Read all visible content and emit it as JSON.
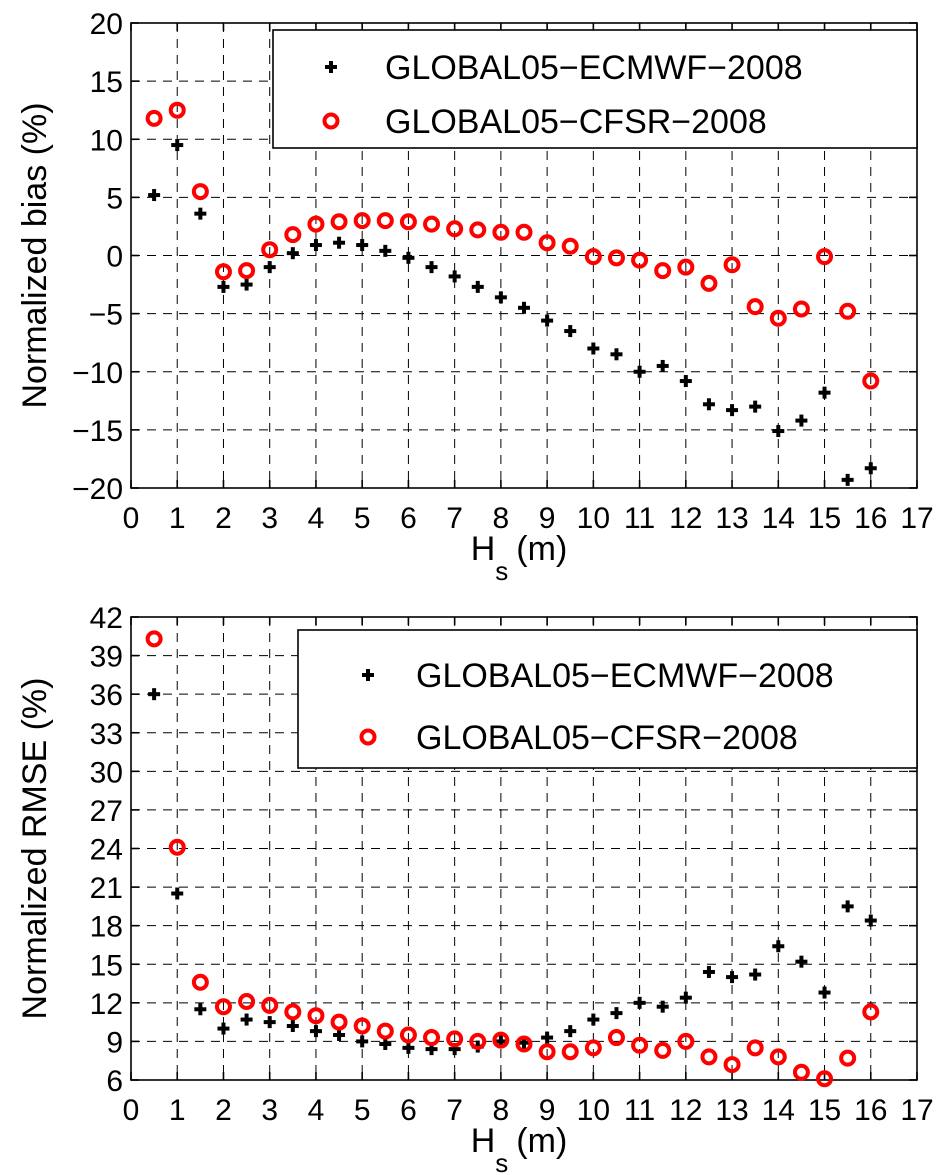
{
  "colors": {
    "ecmwf": "#000000",
    "cfsr": "#ff0000"
  },
  "chart_data": [
    {
      "type": "scatter",
      "ylabel": "Normalized bias (%)",
      "xlabel_main": "H",
      "xlabel_sub": "s",
      "xlabel_unit": "(m)",
      "xlim": [
        0,
        17
      ],
      "ylim": [
        -20,
        20
      ],
      "xticks": [
        0,
        1,
        2,
        3,
        4,
        5,
        6,
        7,
        8,
        9,
        10,
        11,
        12,
        13,
        14,
        15,
        16,
        17
      ],
      "yticks": [
        -20,
        -15,
        -10,
        -5,
        0,
        5,
        10,
        15,
        20
      ],
      "grid": true,
      "legend_position": "top-right",
      "series": [
        {
          "name": "GLOBAL05−ECMWF−2008",
          "marker": "plus",
          "x": [
            0.5,
            1,
            1.5,
            2,
            2.5,
            3,
            3.5,
            4,
            4.5,
            5,
            5.5,
            6,
            6.5,
            7,
            7.5,
            8,
            8.5,
            9,
            9.5,
            10,
            10.5,
            11,
            11.5,
            12,
            12.5,
            13,
            13.5,
            14,
            14.5,
            15,
            15.5,
            16
          ],
          "y": [
            5.2,
            9.5,
            3.6,
            -2.7,
            -2.5,
            -1.0,
            0.2,
            0.9,
            1.1,
            0.9,
            0.4,
            -0.2,
            -1.0,
            -1.8,
            -2.7,
            -3.6,
            -4.5,
            -5.6,
            -6.5,
            -8.0,
            -8.5,
            -10.0,
            -9.5,
            -10.8,
            -12.8,
            -13.3,
            -13.0,
            -15.1,
            -14.2,
            -11.8,
            -19.3,
            -18.3
          ]
        },
        {
          "name": "GLOBAL05−CFSR−2008",
          "marker": "circle",
          "x": [
            0.5,
            1,
            1.5,
            2,
            2.5,
            3,
            3.5,
            4,
            4.5,
            5,
            5.5,
            6,
            6.5,
            7,
            7.5,
            8,
            8.5,
            9,
            9.5,
            10,
            10.5,
            11,
            11.5,
            12,
            12.5,
            13,
            13.5,
            14,
            14.5,
            15,
            15.5,
            16
          ],
          "y": [
            11.8,
            12.5,
            5.5,
            -1.4,
            -1.3,
            0.5,
            1.8,
            2.7,
            2.9,
            3.0,
            3.0,
            2.9,
            2.7,
            2.3,
            2.2,
            2.0,
            2.0,
            1.1,
            0.8,
            -0.1,
            -0.2,
            -0.4,
            -1.3,
            -1.0,
            -2.4,
            -0.8,
            -4.4,
            -5.4,
            -4.6,
            -0.1,
            -4.8,
            -10.8
          ]
        }
      ]
    },
    {
      "type": "scatter",
      "ylabel": "Normalized RMSE (%)",
      "xlabel_main": "H",
      "xlabel_sub": "s",
      "xlabel_unit": "(m)",
      "xlim": [
        0,
        17
      ],
      "ylim": [
        6,
        42
      ],
      "xticks": [
        0,
        1,
        2,
        3,
        4,
        5,
        6,
        7,
        8,
        9,
        10,
        11,
        12,
        13,
        14,
        15,
        16,
        17
      ],
      "yticks": [
        6,
        9,
        12,
        15,
        18,
        21,
        24,
        27,
        30,
        33,
        36,
        39,
        42
      ],
      "grid": true,
      "legend_position": "top-right",
      "series": [
        {
          "name": "GLOBAL05−ECMWF−2008",
          "marker": "plus",
          "x": [
            0.5,
            1,
            1.5,
            2,
            2.5,
            3,
            3.5,
            4,
            4.5,
            5,
            5.5,
            6,
            6.5,
            7,
            7.5,
            8,
            8.5,
            9,
            9.5,
            10,
            10.5,
            11,
            11.5,
            12,
            12.5,
            13,
            13.5,
            14,
            14.5,
            15,
            15.5,
            16
          ],
          "y": [
            36.0,
            20.5,
            11.5,
            10.0,
            10.7,
            10.5,
            10.2,
            9.8,
            9.5,
            9.0,
            8.8,
            8.5,
            8.4,
            8.4,
            8.6,
            9.0,
            8.9,
            9.3,
            9.8,
            10.7,
            11.2,
            12.0,
            11.7,
            12.4,
            14.4,
            14.0,
            14.2,
            16.4,
            15.2,
            12.8,
            19.5,
            18.4
          ]
        },
        {
          "name": "GLOBAL05−CFSR−2008",
          "marker": "circle",
          "x": [
            0.5,
            1,
            1.5,
            2,
            2.5,
            3,
            3.5,
            4,
            4.5,
            5,
            5.5,
            6,
            6.5,
            7,
            7.5,
            8,
            8.5,
            9,
            9.5,
            10,
            10.5,
            11,
            11.5,
            12,
            12.5,
            13,
            13.5,
            14,
            14.5,
            15,
            15.5,
            16
          ],
          "y": [
            40.3,
            24.1,
            13.6,
            11.7,
            12.1,
            11.8,
            11.3,
            11.0,
            10.5,
            10.2,
            9.8,
            9.5,
            9.3,
            9.2,
            9.0,
            9.1,
            8.8,
            8.2,
            8.2,
            8.5,
            9.3,
            8.7,
            8.3,
            9.0,
            7.8,
            7.2,
            8.5,
            7.8,
            6.6,
            6.1,
            7.7,
            11.3
          ]
        }
      ]
    }
  ]
}
